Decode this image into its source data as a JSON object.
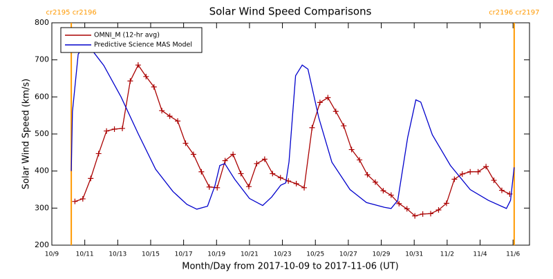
{
  "chart_data": {
    "type": "line",
    "title": "Solar Wind Speed Comparisons",
    "xlabel": "Month/Day from 2017-10-09 to 2017-11-06 (UT)",
    "ylabel": "Solar Wind Speed (km/s)",
    "xlim": [
      0,
      29
    ],
    "ylim": [
      200,
      800
    ],
    "xticks": [
      {
        "value": 0,
        "label": "10/9"
      },
      {
        "value": 2,
        "label": "10/11"
      },
      {
        "value": 4,
        "label": "10/13"
      },
      {
        "value": 6,
        "label": "10/15"
      },
      {
        "value": 8,
        "label": "10/17"
      },
      {
        "value": 10,
        "label": "10/19"
      },
      {
        "value": 12,
        "label": "10/21"
      },
      {
        "value": 14,
        "label": "10/23"
      },
      {
        "value": 16,
        "label": "10/25"
      },
      {
        "value": 18,
        "label": "10/27"
      },
      {
        "value": 20,
        "label": "10/29"
      },
      {
        "value": 22,
        "label": "10/31"
      },
      {
        "value": 24,
        "label": "11/2"
      },
      {
        "value": 26,
        "label": "11/4"
      },
      {
        "value": 28,
        "label": "11/6"
      }
    ],
    "yticks": [
      200,
      300,
      400,
      500,
      600,
      700,
      800
    ],
    "legend": "upper left",
    "vlines": [
      {
        "x": 1.18,
        "label": "cr2195 cr2196",
        "color": "#ff9900"
      },
      {
        "x": 28.07,
        "label": "cr2196 cr2197",
        "color": "#ff9900"
      }
    ],
    "series": [
      {
        "name": "OMNI_M (12-hr avg)",
        "color": "#aa0000",
        "marker": "+",
        "x": [
          1.4,
          1.88,
          2.36,
          2.84,
          3.32,
          3.8,
          4.28,
          4.76,
          5.24,
          5.72,
          6.2,
          6.68,
          7.16,
          7.64,
          8.12,
          8.6,
          9.08,
          9.56,
          10.04,
          10.52,
          11.0,
          11.48,
          11.96,
          12.44,
          12.92,
          13.4,
          13.88,
          14.36,
          14.84,
          15.32,
          15.8,
          16.28,
          16.76,
          17.24,
          17.72,
          18.2,
          18.68,
          19.16,
          19.64,
          20.12,
          20.6,
          21.08,
          21.56,
          22.04,
          22.52,
          23.0,
          23.48,
          23.96,
          24.44,
          24.92,
          25.4,
          25.88,
          26.36,
          26.84,
          27.32,
          27.8
        ],
        "values": [
          318,
          325,
          380,
          447,
          508,
          513,
          515,
          643,
          686,
          655,
          627,
          563,
          548,
          535,
          475,
          445,
          398,
          357,
          355,
          428,
          445,
          393,
          358,
          420,
          432,
          393,
          382,
          373,
          366,
          355,
          517,
          585,
          598,
          561,
          522,
          458,
          430,
          390,
          370,
          347,
          335,
          312,
          298,
          279,
          284,
          285,
          295,
          313,
          378,
          392,
          398,
          398,
          412,
          375,
          348,
          338
        ]
      },
      {
        "name": "Predictive Science MAS Model",
        "color": "#0000cc",
        "x": [
          1.18,
          1.25,
          1.6,
          1.97,
          2.2,
          3.15,
          4.2,
          5.25,
          6.3,
          7.35,
          8.2,
          8.8,
          9.45,
          9.9,
          10.2,
          10.5,
          11.1,
          12.0,
          12.8,
          13.35,
          13.9,
          14.2,
          14.4,
          14.8,
          15.2,
          15.55,
          16.2,
          17.0,
          18.1,
          19.1,
          20.2,
          20.6,
          21.0,
          21.6,
          22.1,
          22.4,
          23.1,
          24.2,
          25.4,
          26.5,
          27.6,
          27.85,
          28.07
        ],
        "values": [
          400,
          560,
          715,
          740,
          740,
          685,
          600,
          500,
          405,
          345,
          310,
          297,
          305,
          360,
          415,
          420,
          378,
          326,
          307,
          330,
          362,
          368,
          425,
          657,
          686,
          675,
          545,
          424,
          350,
          315,
          302,
          299,
          321,
          490,
          592,
          586,
          498,
          415,
          350,
          321,
          299,
          321,
          410
        ]
      }
    ]
  }
}
